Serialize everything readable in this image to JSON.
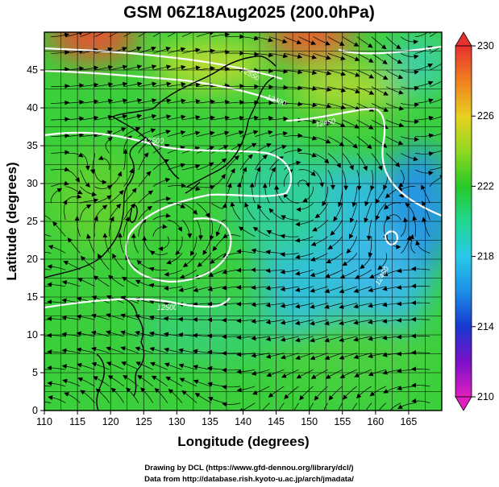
{
  "title": "GSM 06Z18Aug2025 (200.0hPa)",
  "credits": {
    "line1": "Drawing by DCL (https://www.gfd-dennou.org/library/dcl/)",
    "line2": "Data from http://database.rish.kyoto-u.ac.jp/arch/jmadata/"
  },
  "chart_data": {
    "type": "map",
    "projection": "equirectangular",
    "variable": "temperature (K) shaded, streamlines of wind",
    "level": "200.0hPa",
    "xlabel": "Longitude (degrees)",
    "ylabel": "Latitude (degrees)",
    "xlim": [
      110,
      170
    ],
    "ylim": [
      0,
      50
    ],
    "xticks": [
      "110",
      "115",
      "120",
      "125",
      "130",
      "135",
      "140",
      "145",
      "150",
      "155",
      "160",
      "165"
    ],
    "yticks": [
      "0",
      "5",
      "10",
      "15",
      "20",
      "25",
      "30",
      "35",
      "40",
      "45"
    ],
    "colorbar": {
      "min": 210,
      "max": 230,
      "ticks": [
        "210",
        "214",
        "218",
        "222",
        "226",
        "230"
      ],
      "stops": [
        {
          "value": 210,
          "color": "#e020c0"
        },
        {
          "value": 212,
          "color": "#7a10c8"
        },
        {
          "value": 214,
          "color": "#1838d0"
        },
        {
          "value": 216,
          "color": "#1c8ee6"
        },
        {
          "value": 218,
          "color": "#28c8e8"
        },
        {
          "value": 220,
          "color": "#20d890"
        },
        {
          "value": 222,
          "color": "#28c828"
        },
        {
          "value": 224,
          "color": "#90d820"
        },
        {
          "value": 226,
          "color": "#e8d020"
        },
        {
          "value": 228,
          "color": "#f08020"
        },
        {
          "value": 230,
          "color": "#e83030"
        }
      ]
    },
    "contour_labels": [
      "12400",
      "12450",
      "12500",
      "12500",
      "12450",
      "12550"
    ],
    "colors": {
      "contour": "#ffffff",
      "coast": "#000000",
      "grid": "#000000",
      "streamline": "#000000"
    }
  }
}
